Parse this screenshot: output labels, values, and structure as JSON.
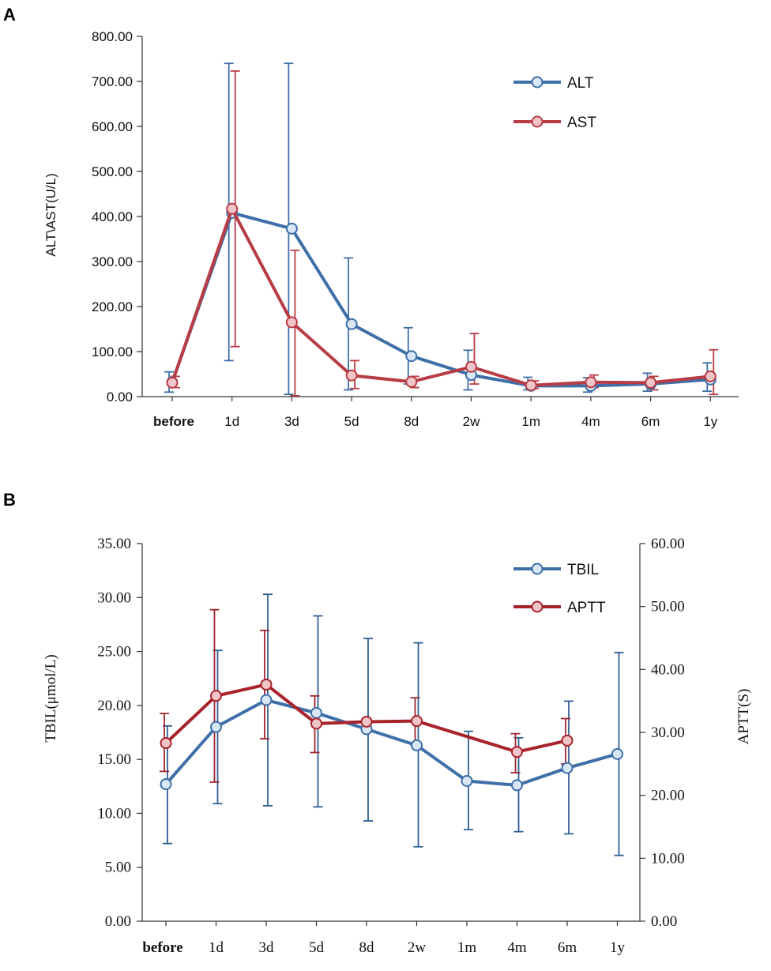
{
  "panels": {
    "a": {
      "label": "A"
    },
    "b": {
      "label": "B"
    }
  },
  "colors": {
    "blue": "#3f6fa8",
    "blue_fill": "#d9e8f7",
    "red": "#b83c45",
    "red_fill": "#f2c6c8",
    "red_b": "#a8232c",
    "blue_err": "#2f5f93",
    "red_err": "#9e2630",
    "axis": "#333333"
  },
  "chart_data": [
    {
      "type": "line",
      "title": "",
      "xlabel": "",
      "ylabel": "ALT\\AST(U/L)",
      "categories": [
        "before",
        "1d",
        "3d",
        "5d",
        "8d",
        "2w",
        "1m",
        "4m",
        "6m",
        "1y"
      ],
      "ylim": [
        0,
        800
      ],
      "yticks": [
        "0.00",
        "100.00",
        "200.00",
        "300.00",
        "400.00",
        "500.00",
        "600.00",
        "700.00",
        "800.00"
      ],
      "legend_position": "top-right",
      "series": [
        {
          "name": "ALT",
          "color": "#3f6fa8",
          "values": [
            32,
            408,
            373,
            161,
            90,
            48,
            24,
            24,
            28,
            38
          ],
          "err_high": [
            55,
            740,
            740,
            308,
            153,
            103,
            43,
            42,
            52,
            75
          ],
          "err_low": [
            10,
            80,
            5,
            15,
            28,
            15,
            15,
            10,
            12,
            12
          ]
        },
        {
          "name": "AST",
          "color": "#b83c45",
          "values": [
            31,
            417,
            165,
            47,
            33,
            66,
            25,
            32,
            31,
            45
          ],
          "err_high": [
            45,
            723,
            325,
            80,
            45,
            140,
            35,
            48,
            45,
            104
          ],
          "err_low": [
            20,
            111,
            2,
            18,
            20,
            28,
            18,
            20,
            15,
            5
          ]
        }
      ]
    },
    {
      "type": "line",
      "title": "",
      "xlabel": "",
      "ylabel": "TBIL(μmol/L)",
      "y2label": "APTT(S)",
      "categories": [
        "before",
        "1d",
        "3d",
        "5d",
        "8d",
        "2w",
        "1m",
        "4m",
        "6m",
        "1y"
      ],
      "ylim": [
        0,
        35
      ],
      "y2lim": [
        0,
        60
      ],
      "yticks": [
        "0.00",
        "5.00",
        "10.00",
        "15.00",
        "20.00",
        "25.00",
        "30.00",
        "35.00"
      ],
      "y2ticks": [
        "0.00",
        "10.00",
        "20.00",
        "30.00",
        "40.00",
        "50.00",
        "60.00"
      ],
      "legend_position": "top-right",
      "series": [
        {
          "name": "TBIL",
          "axis": "left",
          "color": "#3f6fa8",
          "values": [
            12.7,
            18.0,
            20.5,
            19.3,
            17.8,
            16.3,
            13.0,
            12.6,
            14.2,
            15.5
          ],
          "err_high": [
            18.1,
            25.1,
            30.3,
            28.3,
            26.2,
            25.8,
            17.6,
            17.0,
            20.4,
            24.9
          ],
          "err_low": [
            7.2,
            10.9,
            10.7,
            10.6,
            9.3,
            6.9,
            8.5,
            8.3,
            8.1,
            6.1
          ]
        },
        {
          "name": "APTT",
          "axis": "right",
          "color": "#a8232c",
          "values": [
            28.3,
            35.8,
            37.6,
            31.4,
            31.7,
            31.8,
            null,
            26.9,
            28.7,
            null
          ],
          "err_high": [
            33.0,
            49.5,
            46.2,
            35.8,
            null,
            35.5,
            null,
            29.8,
            32.2,
            null
          ],
          "err_low": [
            23.8,
            22.1,
            29.0,
            26.8,
            null,
            28.0,
            null,
            23.6,
            25.0,
            null
          ]
        }
      ]
    }
  ]
}
